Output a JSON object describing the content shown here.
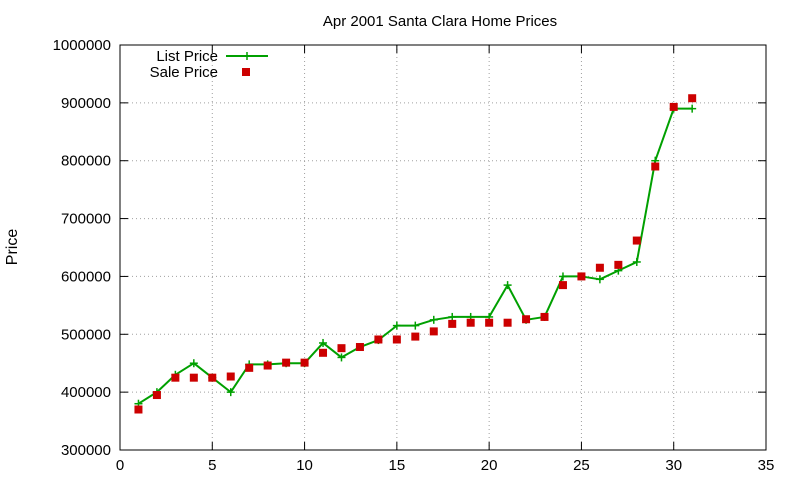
{
  "chart_data": {
    "type": "line",
    "title": "Apr 2001 Santa Clara Home Prices",
    "xlabel": "",
    "ylabel": "Price",
    "xlim": [
      0,
      35
    ],
    "ylim": [
      300000,
      1000000
    ],
    "xticks": [
      0,
      5,
      10,
      15,
      20,
      25,
      30,
      35
    ],
    "yticks": [
      300000,
      400000,
      500000,
      600000,
      700000,
      800000,
      900000,
      1000000
    ],
    "grid": true,
    "legend_position": "top-left",
    "series": [
      {
        "name": "List Price",
        "style": "line-with-plus-markers",
        "color": "#00a000",
        "x": [
          1,
          2,
          3,
          4,
          5,
          6,
          7,
          8,
          9,
          10,
          11,
          12,
          13,
          14,
          15,
          16,
          17,
          18,
          19,
          20,
          21,
          22,
          23,
          24,
          25,
          26,
          27,
          28,
          29,
          30,
          31
        ],
        "values": [
          380000,
          400000,
          430000,
          450000,
          425000,
          400000,
          448000,
          448000,
          450000,
          450000,
          485000,
          460000,
          478000,
          490000,
          515000,
          515000,
          525000,
          530000,
          530000,
          530000,
          585000,
          525000,
          530000,
          600000,
          600000,
          595000,
          610000,
          625000,
          800000,
          890000,
          890000
        ]
      },
      {
        "name": "Sale Price",
        "style": "square-markers",
        "color": "#cc0000",
        "x": [
          1,
          2,
          3,
          4,
          5,
          6,
          7,
          8,
          9,
          10,
          11,
          12,
          13,
          14,
          15,
          16,
          17,
          18,
          19,
          20,
          21,
          22,
          23,
          24,
          25,
          26,
          27,
          28,
          29,
          30,
          31
        ],
        "values": [
          370000,
          395000,
          425000,
          425000,
          425000,
          427000,
          442000,
          446000,
          451000,
          451000,
          468000,
          476000,
          478000,
          491000,
          491000,
          496000,
          505000,
          518000,
          520000,
          520000,
          520000,
          526000,
          530000,
          585000,
          600000,
          615000,
          620000,
          662000,
          790000,
          893000,
          908000
        ]
      }
    ]
  }
}
